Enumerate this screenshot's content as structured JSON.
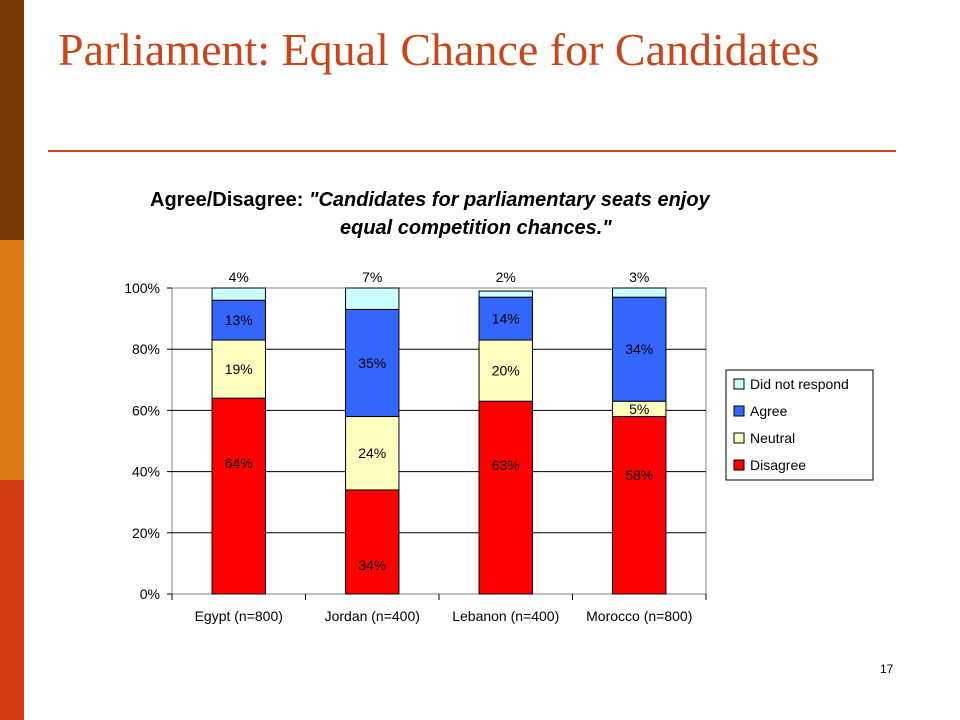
{
  "slide": {
    "title": "Parliament: Equal Chance for Candidates",
    "page_number": "17",
    "side_bar_colors": [
      "#7a3a08",
      "#e07a12",
      "#d23c10"
    ]
  },
  "chart_data": {
    "type": "bar",
    "stacked": true,
    "title_prefix": "Agree/Disagree:",
    "title_quote_line1": "\"Candidates for parliamentary seats enjoy",
    "title_quote_line2": "equal competition chances.\"",
    "categories": [
      "Egypt (n=800)",
      "Jordan (n=400)",
      "Lebanon (n=400)",
      "Morocco (n=800)"
    ],
    "series": [
      {
        "name": "Disagree",
        "color": "#ff0000",
        "values": [
          64,
          34,
          63,
          58
        ]
      },
      {
        "name": "Neutral",
        "color": "#ffffc0",
        "values": [
          19,
          24,
          20,
          5
        ]
      },
      {
        "name": "Agree",
        "color": "#3366ff",
        "values": [
          13,
          35,
          14,
          34
        ]
      },
      {
        "name": "Did not respond",
        "color": "#ccffff",
        "values": [
          4,
          7,
          2,
          3
        ]
      }
    ],
    "ylim": [
      0,
      100
    ],
    "yticks": [
      "0%",
      "20%",
      "40%",
      "60%",
      "80%",
      "100%"
    ],
    "grid": true,
    "legend_position": "right",
    "legend_order": [
      "Did not respond",
      "Agree",
      "Neutral",
      "Disagree"
    ]
  }
}
